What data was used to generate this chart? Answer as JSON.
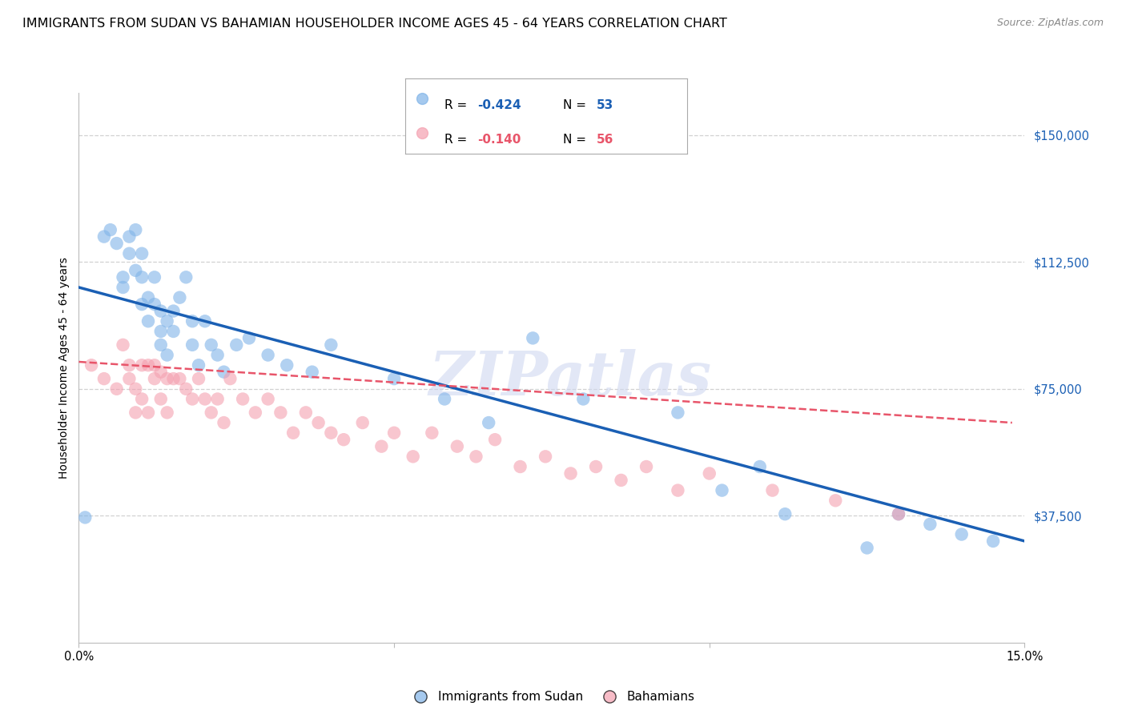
{
  "title": "IMMIGRANTS FROM SUDAN VS BAHAMIAN HOUSEHOLDER INCOME AGES 45 - 64 YEARS CORRELATION CHART",
  "source": "Source: ZipAtlas.com",
  "ylabel": "Householder Income Ages 45 - 64 years",
  "xlim": [
    0.0,
    0.15
  ],
  "ylim": [
    0,
    162500
  ],
  "yticks": [
    37500,
    75000,
    112500,
    150000
  ],
  "ytick_labels": [
    "$37,500",
    "$75,000",
    "$112,500",
    "$150,000"
  ],
  "xticks": [
    0.0,
    0.05,
    0.1,
    0.15
  ],
  "xtick_labels": [
    "0.0%",
    "",
    "",
    "15.0%"
  ],
  "legend_label1": "Immigrants from Sudan",
  "legend_label2": "Bahamians",
  "blue_color": "#7fb3e8",
  "pink_color": "#f4a0b0",
  "trend_blue": "#1a5fb4",
  "trend_pink": "#e8556a",
  "watermark": "ZIPatlas",
  "blue_scatter_x": [
    0.001,
    0.004,
    0.005,
    0.006,
    0.007,
    0.007,
    0.008,
    0.008,
    0.009,
    0.009,
    0.01,
    0.01,
    0.01,
    0.011,
    0.011,
    0.012,
    0.012,
    0.013,
    0.013,
    0.013,
    0.014,
    0.014,
    0.015,
    0.015,
    0.016,
    0.017,
    0.018,
    0.018,
    0.019,
    0.02,
    0.021,
    0.022,
    0.023,
    0.025,
    0.027,
    0.03,
    0.033,
    0.037,
    0.04,
    0.05,
    0.058,
    0.065,
    0.072,
    0.08,
    0.095,
    0.102,
    0.108,
    0.112,
    0.125,
    0.13,
    0.135,
    0.14,
    0.145
  ],
  "blue_scatter_y": [
    37000,
    120000,
    122000,
    118000,
    105000,
    108000,
    120000,
    115000,
    110000,
    122000,
    100000,
    108000,
    115000,
    102000,
    95000,
    108000,
    100000,
    98000,
    92000,
    88000,
    95000,
    85000,
    92000,
    98000,
    102000,
    108000,
    95000,
    88000,
    82000,
    95000,
    88000,
    85000,
    80000,
    88000,
    90000,
    85000,
    82000,
    80000,
    88000,
    78000,
    72000,
    65000,
    90000,
    72000,
    68000,
    45000,
    52000,
    38000,
    28000,
    38000,
    35000,
    32000,
    30000
  ],
  "pink_scatter_x": [
    0.002,
    0.004,
    0.006,
    0.007,
    0.008,
    0.008,
    0.009,
    0.009,
    0.01,
    0.01,
    0.011,
    0.011,
    0.012,
    0.012,
    0.013,
    0.013,
    0.014,
    0.014,
    0.015,
    0.016,
    0.017,
    0.018,
    0.019,
    0.02,
    0.021,
    0.022,
    0.023,
    0.024,
    0.026,
    0.028,
    0.03,
    0.032,
    0.034,
    0.036,
    0.038,
    0.04,
    0.042,
    0.045,
    0.048,
    0.05,
    0.053,
    0.056,
    0.06,
    0.063,
    0.066,
    0.07,
    0.074,
    0.078,
    0.082,
    0.086,
    0.09,
    0.095,
    0.1,
    0.11,
    0.12,
    0.13
  ],
  "pink_scatter_y": [
    82000,
    78000,
    75000,
    88000,
    82000,
    78000,
    75000,
    68000,
    82000,
    72000,
    82000,
    68000,
    82000,
    78000,
    80000,
    72000,
    78000,
    68000,
    78000,
    78000,
    75000,
    72000,
    78000,
    72000,
    68000,
    72000,
    65000,
    78000,
    72000,
    68000,
    72000,
    68000,
    62000,
    68000,
    65000,
    62000,
    60000,
    65000,
    58000,
    62000,
    55000,
    62000,
    58000,
    55000,
    60000,
    52000,
    55000,
    50000,
    52000,
    48000,
    52000,
    45000,
    50000,
    45000,
    42000,
    38000
  ],
  "blue_line_x": [
    0.0,
    0.15
  ],
  "blue_line_y": [
    105000,
    30000
  ],
  "pink_line_x": [
    0.0,
    0.148
  ],
  "pink_line_y": [
    83000,
    65000
  ],
  "grid_color": "#cccccc",
  "background_color": "#ffffff",
  "title_fontsize": 11.5,
  "axis_label_fontsize": 10,
  "tick_fontsize": 10.5,
  "legend_fontsize": 11,
  "watermark_fontsize": 55,
  "watermark_color": "#d0d8f0",
  "watermark_alpha": 0.6
}
